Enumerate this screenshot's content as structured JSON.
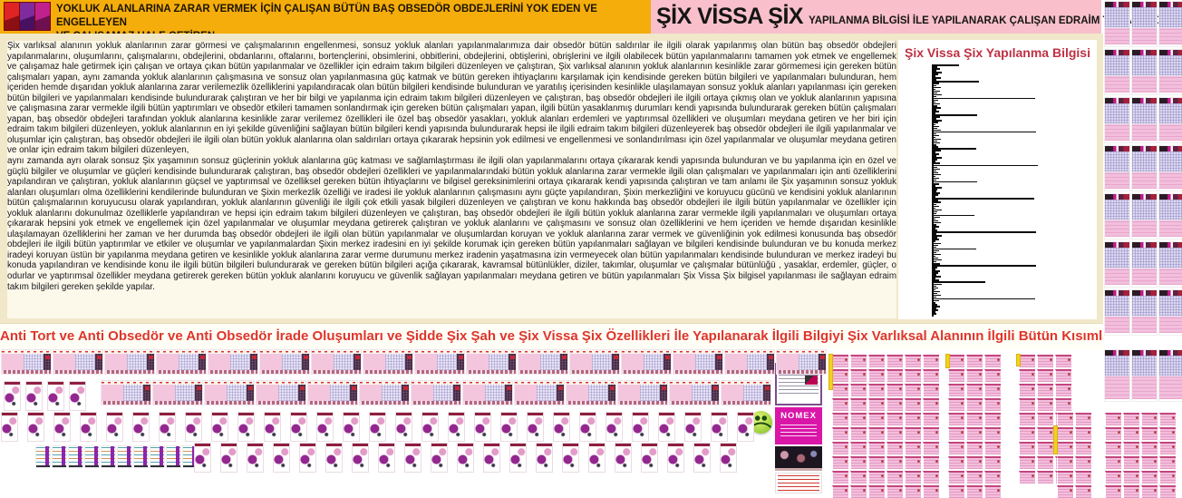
{
  "header": {
    "line1": "YOKLUK ALANLARINA ZARAR VERMEK İÇİN ÇALIŞAN BÜTÜN BAŞ OBSEDÖR OBDEJLERİNİ YOK EDEN VE ENGELLEYEN",
    "line2": "VE ÇALIŞAMAZ HALE GETİREN",
    "accent_color": "#F5AD0B"
  },
  "title": {
    "main": "ŞİX VİSSA ŞİX",
    "sub": "YAPILANMA BİLGİSİ İLE YAPILANARAK ÇALIŞAN EDRAİM TAKIM BİLGİLERİ",
    "background_color": "#F9C0CB"
  },
  "doc": {
    "para1": "Şix varlıksal alanının yokluk alanlarının zarar görmesi ve çalışmalarının engellenmesi, sonsuz yokluk alanları yapılanmalarımıza dair obsedör bütün saldırılar ile ilgili olarak yapılanmış olan bütün baş obsedör obdejleri yapılanmalarını, oluşumlarını, çalışmalarını, obdejlerini, obdanlarını, oftalarını, bortençlerini, obsimlerini, obbitlerini, obdejlerini, obtişlerini, obrişlerini ve ilgili olabilecek bütün yapılanmalarını tamamen yok etmek ve engellemek ve çalışamaz hale getirmek için çalışan ve ortaya çıkan bütün yapılanmalar ve özellikler için edraim takım bilgileri düzenleyen ve çalıştıran, Şix varlıksal alanının yokluk alanlarının kesinlikle zarar görmemesi için gereken bütün çalışmaları yapan, aynı zamanda yokluk alanlarının çalışmasına ve sonsuz olan yapılanmasına güç katmak ve bütün gereken ihtiyaçlarını karşılamak için kendisinde gereken bütün bilgileri ve yapılanmaları bulunduran, hem içeriden hemde dışarıdan yokluk alanlarına zarar verilemezlik özelliklerini yapılandıracak olan bütün bilgileri kendisinde bulunduran ve yaratılış içerisinden kesinlikle ulaşılamayan sonsuz yokluk alanları yapılanması için gereken bütün bilgileri ve yapılanmaları kendisinde bulundurarak çalıştıran ve her bir bilgi ve yapılanma için edraim takım bilgileri düzenleyen ve çalıştıran, baş obsedör obdejleri ile ilgili ortaya çıkmış olan ve yokluk alanlarının yapısına ve çalışmasına zarar vermekle ilgili bütün yaptırımları ve obsedör etkileri tamamen sonlandırmak için gereken bütün çalışmaları yapan, ilgili bütün yasaklanmış durumları kendi yapısında bulundurarak gereken bütün çalışmaları yapan, baş obsedör obdejleri tarafından yokluk alanlarına kesinlikle zarar verilemez özellikleri ile özel baş obsedör yasakları, yokluk alanları erdemleri ve yaptırımsal özellikleri ve oluşumları meydana getiren ve her biri için edraim takım bilgileri düzenleyen, yokluk alanlarının en iyi şekilde güvenliğini sağlayan bütün bilgileri kendi yapısında bulundurarak hepsi ile ilgili edraim takım bilgileri düzenleyerek baş obsedör obdejleri ile ilgili yapılanmalar ve oluşumlar için çalıştıran, baş obsedör obdejleri ile ilgili olan bütün yokluk alanlarına olan saldırıları ortaya çıkararak hepsinin yok edilmesi ve engellenmesi ve sonlandırılması için özel yapılanmalar ve oluşumlar meydana getiren ve onlar için edraim takım bilgileri düzenleyen,",
    "para2": " aynı zamanda ayrı olarak sonsuz Şix yaşamının sonsuz güçlerinin yokluk alanlarına güç katması ve sağlamlaştırması ile ilgili olan yapılanmalarını ortaya çıkararak kendi yapısında bulunduran ve bu yapılanma için en özel ve güçlü bilgiler ve oluşumlar ve güçleri kendisinde bulundurarak çalıştıran, baş obsedör obdejleri özellikleri ve yapılanmalarındaki bütün yokluk alanlarına zarar vermekle ilgili olan çalışmaları ve yapılanmaları için anti özelliklerini yapılandıran ve çalıştıran, yokluk alanlarının güçsel ve yaptırımsal ve özelliksel gereken bütün ihtiyaçlarını ve bilgisel gereksinimlerini ortaya çıkararak kendi yapısında çalıştıran ve tam anlamı ile Şix yaşamının sonsuz yokluk alanları oluşumları olma özelliklerini kendilerinde bulunduran ve Şixin merkezlik özelliği ve iradesi ile yokluk alanlarının çalışmasını aynı güçte yapılandıran, Şixin merkezliğini ve koruyucu gücünü ve kendisini yokluk alanlarının bütün çalışmalarının koruyucusu olarak yapılandıran, yokluk alanlarının  güvenliği ile ilgili çok etkili yasak bilgileri düzenleyen ve çalıştıran ve konu hakkında baş obsedör obdejleri ile ilgili bütün yapılanmalar ve özellikler için yokluk alanlarını dokunulmaz özelliklerle yapılandıran ve hepsi için edraim takım bilgileri düzenleyen ve çalıştıran, baş obsedör obdejleri ile ilgili bütün yokluk alanlarına zarar vermekle ilgili yapılanmaları ve oluşumları ortaya  çıkararak hepsini yok etmek ve engellemek için özel yapılanmalar ve oluşumlar meydana getirerek çalıştıran ve yokluk alanlarını ve çalışmasını ve sonsuz olan özelliklerini ve hem içeriden ve hemde dışarıdan kesinlikle ulaşılamayan özelliklerini her zaman ve her durumda baş obsedör obdejleri ile ilgili olan bütün yapılanmalar ve oluşumlardan koruyan ve yokluk alanlarına zarar vermek ve güvenliğinin yok edilmesi konusunda baş obsedör obdejleri ile ilgili bütün yaptırımlar ve etkiler ve oluşumlar ve yapılanmalardan Şixin merkez iradesini en iyi şekilde korumak için gereken bütün yapılanmaları sağlayan ve bilgileri kendisinde bulunduran ve bu konuda merkez iradeyi koruyan üstün bir yapılanma meydana getiren ve kesinlikle yokluk alanlarına zarar verme durumunu merkez iradenin yaşatmasına izin vermeyecek olan bütün yapılanmaları kendisinde bulunduran ve merkez iradeyi bu konuda yapılandıran ve kendisinde konu ile ilgili bütün bilgileri bulundurarak ve gereken bütün bilgileri açığa çıkararak, kavramsal bütünlükler, diziler, takımlar, oluşumlar ve çalışmalar bütünlüğü , yasaklar, erdemler, güçler, o odurlar ve yaptırımsal özellikler meydana getirerek gereken bütün yokluk alanlarını koruyucu ve güvenlik sağlayan yapılanmaları meydana getiren ve bütün yapılanmaları Şix Vissa Şix bilgisel yapılanması ile sağlayan edraim takım bilgileri gereken şekilde yapılar."
  },
  "banner": {
    "text": "Anti Tort ve Anti Obsedör ve Anti Obsedör İrade Oluşumları ve Şidde Şix Şah ve Şix Vissa Şix Özellikleri İle Yapılanarak İlgili Bilgiyi Şix Varlıksal Alanının İlgili Bütün Kısımlarında Uygulatan Edraim Takım Bilgileri Yapılanması",
    "text_color": "#DE352C"
  },
  "ads": {
    "card1_title": "MERIRAV",
    "card2_title": "NOMEX"
  },
  "icons": {
    "smiley-icon": "green smiley face emoticon"
  },
  "chart_data": {
    "type": "bar",
    "orientation": "horizontal",
    "title": "Şix Vissa Şix Yapılanma Bilgisi",
    "title_color": "#BE3144",
    "xlabel": "",
    "ylabel": "",
    "axis_labels_visible": false,
    "grid": false,
    "legend": "none",
    "bar_color": "#0a0a0a",
    "xlim": [
      0,
      120
    ],
    "values": [
      28,
      4,
      7,
      3,
      9,
      5,
      2,
      8,
      3,
      50,
      6,
      3,
      8,
      2,
      7,
      4,
      9,
      3,
      112,
      5,
      2,
      7,
      4,
      8,
      3,
      6,
      2,
      48,
      7,
      3,
      9,
      5,
      2,
      6,
      4,
      8,
      113,
      3,
      6,
      2,
      8,
      4,
      7,
      3,
      5,
      47,
      8,
      2,
      6,
      3,
      9,
      4,
      2,
      7,
      115,
      4,
      7,
      3,
      5,
      8,
      2,
      6,
      3,
      48,
      6,
      2,
      9,
      4,
      3,
      7,
      5,
      2,
      111,
      5,
      8,
      3,
      6,
      2,
      9,
      4,
      3,
      45,
      7,
      2,
      5,
      8,
      3,
      6,
      2,
      4,
      113,
      3,
      9,
      4,
      6,
      2,
      8,
      5,
      3,
      47,
      6,
      3,
      8,
      2,
      5,
      9,
      3,
      7,
      113,
      4,
      2,
      7,
      5,
      3,
      8,
      2,
      6,
      57,
      9,
      3,
      5,
      2,
      7,
      4,
      8,
      3,
      112,
      6,
      2,
      4,
      7,
      3,
      5,
      2,
      3
    ]
  }
}
